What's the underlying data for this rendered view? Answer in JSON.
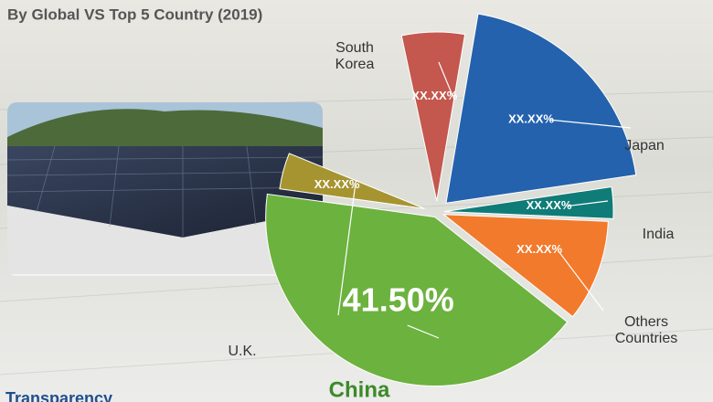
{
  "chart_data": {
    "type": "pie",
    "subtitle": "By Global VS Top 5 Country (2019)",
    "brand": "Transparency",
    "categories": [
      "South Korea",
      "Japan",
      "India",
      "Others Countries",
      "China",
      "U.K."
    ],
    "values": [
      6,
      20,
      3,
      10,
      41.5,
      4
    ],
    "value_labels": [
      "XX.XX%",
      "XX.XX%",
      "XX.XX%",
      "XX.XX%",
      "41.50%",
      "XX.XX%"
    ],
    "colors": [
      "#c4574e",
      "#2462ad",
      "#0f7c78",
      "#f27a2c",
      "#6cb23e",
      "#a69430"
    ]
  }
}
